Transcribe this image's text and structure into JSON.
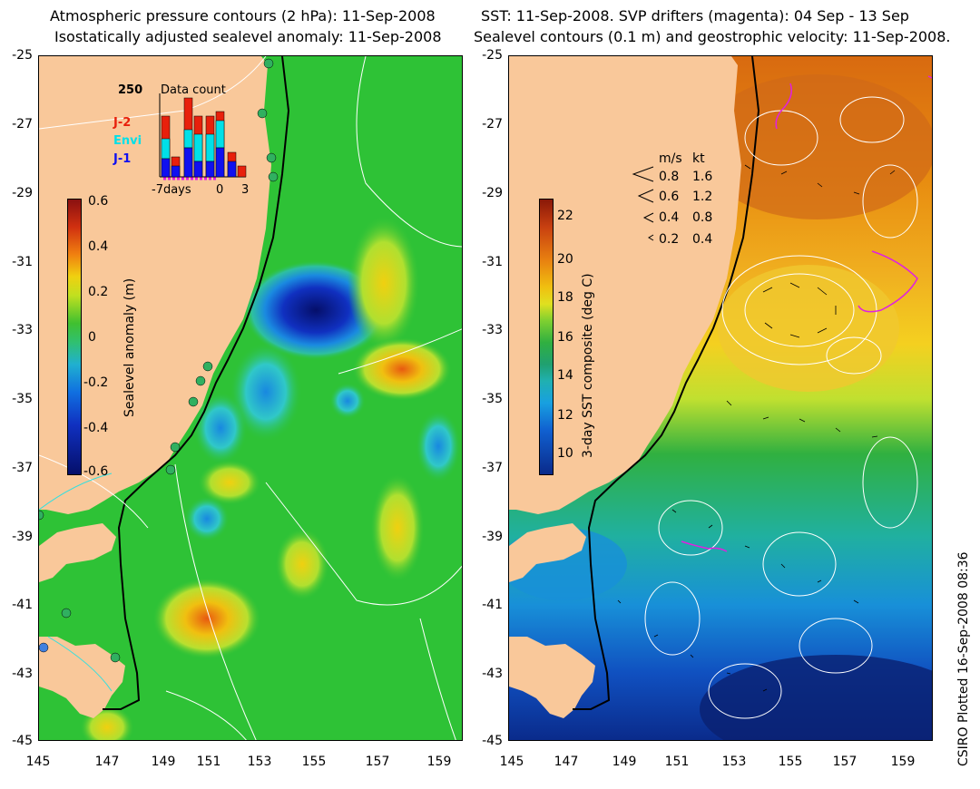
{
  "left_panel": {
    "title_line1": "Atmospheric pressure contours (2 hPa): 11-Sep-2008",
    "title_line2": "Isostatically adjusted sealevel anomaly: 11-Sep-2008",
    "colorbar_label": "Sealevel anomaly (m)",
    "colorbar_ticks": [
      "0.6",
      "0.4",
      "0.2",
      "0",
      "-0.2",
      "-0.4",
      "-0.6"
    ],
    "inset": {
      "count_label": "250",
      "title": "Data count",
      "series": [
        {
          "name": "J-2",
          "color": "#e8200c"
        },
        {
          "name": "Envi",
          "color": "#00e0e8"
        },
        {
          "name": "J-1",
          "color": "#1010f0"
        }
      ],
      "xaxis_label": "-7days",
      "xaxis_ticks": [
        "0",
        "3"
      ]
    }
  },
  "right_panel": {
    "title_line1": "SST: 11-Sep-2008. SVP drifters (magenta): 04 Sep - 13 Sep",
    "title_line2": "Sealevel contours (0.1 m) and geostrophic velocity: 11-Sep-2008.",
    "colorbar_label": "3-day SST composite (deg C)",
    "colorbar_ticks": [
      "22",
      "20",
      "18",
      "16",
      "14",
      "12",
      "10"
    ],
    "velocity_legend": {
      "header_ms": "m/s",
      "header_kt": "kt",
      "rows": [
        {
          "ms": "0.8",
          "kt": "1.6"
        },
        {
          "ms": "0.6",
          "kt": "1.2"
        },
        {
          "ms": "0.4",
          "kt": "0.8"
        },
        {
          "ms": "0.2",
          "kt": "0.4"
        }
      ]
    }
  },
  "y_axis_labels": [
    "-25",
    "-27",
    "-29",
    "-31",
    "-33",
    "-35",
    "-37",
    "-39",
    "-41",
    "-43",
    "-45"
  ],
  "x_axis_labels": [
    "145",
    "147",
    "149",
    "151",
    "153",
    "155",
    "157",
    "159"
  ],
  "plot_stamp": "CSIRO Plotted 16-Sep-2008 08:36",
  "colors": {
    "land": "#f9c89a",
    "ocean_green": "#2ec236",
    "anomaly_low": "#0a1a8a",
    "anomaly_high": "#e85a10",
    "sst_warm": "#e07a10",
    "sst_cold": "#1050c0",
    "drifter": "#e020e0"
  }
}
